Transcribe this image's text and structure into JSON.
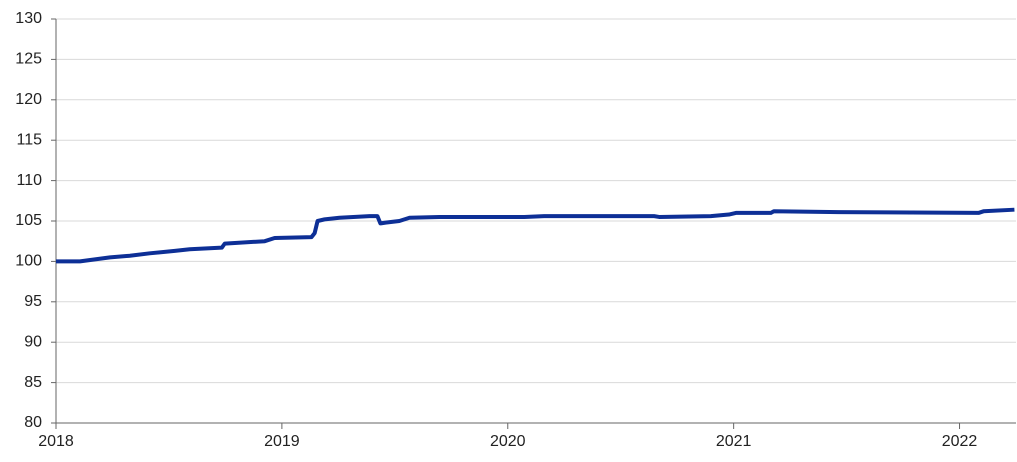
{
  "chart_data": {
    "type": "line",
    "x": [
      2018.0,
      2018.106,
      2018.239,
      2018.327,
      2018.415,
      2018.526,
      2018.592,
      2018.734,
      2018.747,
      2018.924,
      2018.968,
      2019.131,
      2019.145,
      2019.158,
      2019.189,
      2019.255,
      2019.388,
      2019.423,
      2019.436,
      2019.459,
      2019.52,
      2019.565,
      2019.697,
      2020.073,
      2020.161,
      2020.648,
      2020.67,
      2020.899,
      2020.979,
      2021.01,
      2021.165,
      2021.178,
      2021.465,
      2022.084,
      2022.106,
      2022.243
    ],
    "series": [
      {
        "color": "#0d2f96",
        "values": [
          100.0,
          100.0,
          100.5,
          100.7,
          101.0,
          101.3,
          101.5,
          101.7,
          102.2,
          102.5,
          102.9,
          103.0,
          103.5,
          105.0,
          105.2,
          105.4,
          105.6,
          105.6,
          104.7,
          104.8,
          105.0,
          105.4,
          105.5,
          105.5,
          105.6,
          105.6,
          105.5,
          105.6,
          105.8,
          106.0,
          106.0,
          106.2,
          106.1,
          106.0,
          106.2,
          106.4
        ]
      }
    ],
    "xlim": [
      2018,
      2022.25
    ],
    "xticks": [
      2018,
      2019,
      2020,
      2021,
      2022
    ],
    "ylim": [
      80,
      130
    ],
    "yticks": [
      80,
      85,
      90,
      95,
      100,
      105,
      110,
      115,
      120,
      125,
      130
    ],
    "grid": true
  }
}
